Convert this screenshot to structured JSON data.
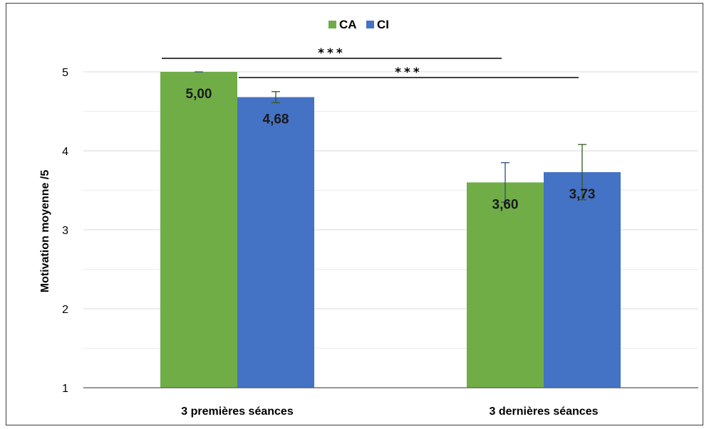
{
  "chart_data": {
    "type": "bar",
    "title": "",
    "xlabel": "",
    "ylabel": "Motivation moyenne /5",
    "ylim": [
      1,
      5
    ],
    "yticks": [
      1,
      2,
      3,
      4,
      5
    ],
    "grid": true,
    "legend_position": "top-center",
    "categories": [
      "3 premières séances",
      "3 dernières séances"
    ],
    "series": [
      {
        "name": "CA",
        "color": "#70ad47",
        "error_bar_color": "#2f4b7c",
        "values": [
          5.0,
          3.6
        ],
        "data_labels": [
          "5,00",
          "3,60"
        ],
        "error": [
          0.0,
          0.25
        ]
      },
      {
        "name": "CI",
        "color": "#4472c4",
        "error_bar_color": "#375623",
        "values": [
          4.68,
          3.73
        ],
        "data_labels": [
          "4,68",
          "3,73"
        ],
        "error": [
          0.07,
          0.35
        ]
      }
    ],
    "annotations": [
      {
        "text": "***",
        "from": {
          "category": 0,
          "series": "CA"
        },
        "to": {
          "category": 1,
          "series": "CA"
        }
      },
      {
        "text": "***",
        "from": {
          "category": 0,
          "series": "CI"
        },
        "to": {
          "category": 1,
          "series": "CI"
        }
      }
    ]
  }
}
